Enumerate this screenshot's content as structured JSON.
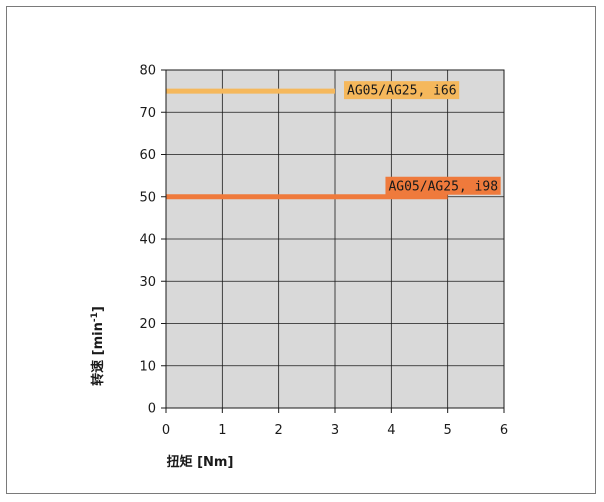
{
  "chart_data": {
    "type": "line",
    "title": "",
    "xlabel": "扭矩 [Nm]",
    "ylabel_main": "转速 [min",
    "ylabel_sup": "-1",
    "ylabel_end": "]",
    "xlim": [
      0,
      6
    ],
    "ylim": [
      0,
      80
    ],
    "x_ticks": [
      "0",
      "1",
      "2",
      "3",
      "4",
      "5",
      "6"
    ],
    "y_ticks": [
      "0",
      "10",
      "20",
      "30",
      "40",
      "50",
      "60",
      "70",
      "80"
    ],
    "grid": true,
    "plot_background": "#d9d9d9",
    "series": [
      {
        "name": "AG05/AG25, i66",
        "x": [
          0,
          3
        ],
        "y": [
          75,
          75
        ],
        "color": "#f5b85c",
        "label_bg": "#f5b85c"
      },
      {
        "name": "AG05/AG25, i98",
        "x": [
          0,
          5
        ],
        "y": [
          50,
          50
        ],
        "color": "#ef7a3c",
        "label_bg": "#ef7a3c"
      }
    ]
  }
}
